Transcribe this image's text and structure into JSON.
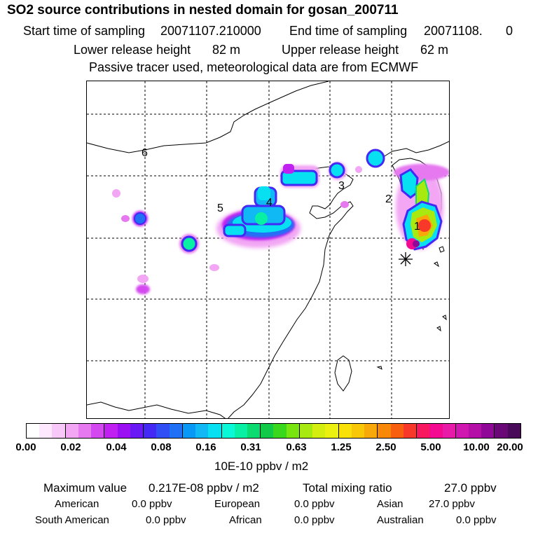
{
  "title": "SO2 source contributions in nested domain for gosan_200711",
  "sampling": {
    "start_label": "Start time of sampling",
    "start_value": "20071107.210000",
    "end_label": "End time of sampling",
    "end_value": "20071108.",
    "end_suffix": "0"
  },
  "release": {
    "lower_label": "Lower release height",
    "lower_value": "82 m",
    "upper_label": "Upper release height",
    "upper_value": "62 m"
  },
  "note": "Passive tracer used, meteorological data are from ECMWF",
  "map": {
    "source_labels": [
      "1",
      "2",
      "3",
      "4",
      "5",
      "6"
    ],
    "receptor_marker": "asterisk"
  },
  "colorbar": {
    "colors": [
      "#ffffff",
      "#fde8fd",
      "#f8c8f8",
      "#f2a6f4",
      "#e678f0",
      "#d448f0",
      "#c020f0",
      "#9a10f2",
      "#6a18f4",
      "#4428f6",
      "#3050f6",
      "#2070f6",
      "#0898f6",
      "#10b8f4",
      "#06e0f0",
      "#08f8d8",
      "#08f0a4",
      "#0cdc70",
      "#10ca48",
      "#3ad81c",
      "#78e410",
      "#a8ea10",
      "#d4ee10",
      "#ecf010",
      "#f8e008",
      "#f8c808",
      "#f8a808",
      "#f88808",
      "#f86010",
      "#f83828",
      "#f81860",
      "#f40a90",
      "#e81aa8",
      "#d018b0",
      "#b410a8",
      "#900898",
      "#6a0878",
      "#4a0a5a"
    ],
    "ticks": [
      "0.00",
      "0.02",
      "0.04",
      "0.08",
      "0.16",
      "0.31",
      "0.63",
      "1.25",
      "2.50",
      "5.00",
      "10.00",
      "20.00"
    ],
    "units": "10E-10 ppbv / m2"
  },
  "summary": {
    "max_label": "Maximum value",
    "max_value": "0.217E-08 ppbv / m2",
    "total_label": "Total mixing ratio",
    "total_value": "27.0 ppbv",
    "regions": [
      {
        "name": "American",
        "value": "0.0 ppbv"
      },
      {
        "name": "European",
        "value": "0.0 ppbv"
      },
      {
        "name": "Asian",
        "value": "27.0 ppbv"
      },
      {
        "name": "South American",
        "value": "0.0 ppbv"
      },
      {
        "name": "African",
        "value": "0.0 ppbv"
      },
      {
        "name": "Australian",
        "value": "0.0 ppbv"
      }
    ]
  }
}
